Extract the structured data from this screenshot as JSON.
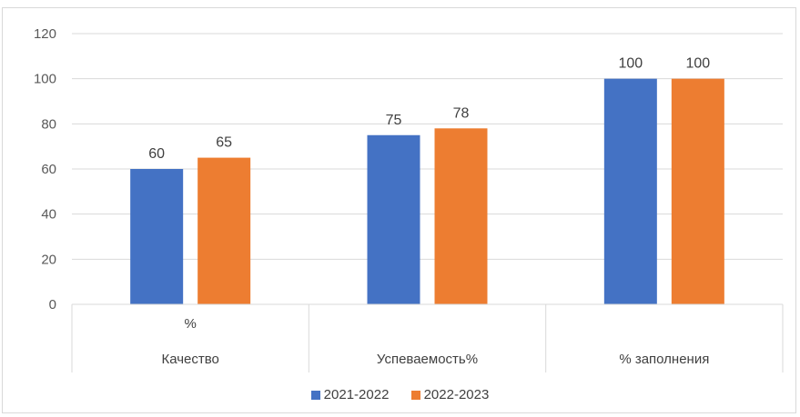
{
  "chart_data": {
    "type": "bar",
    "categories": [
      "Качество",
      "Успеваемость%",
      "% заполнения"
    ],
    "category_sublabels": [
      "%",
      "",
      ""
    ],
    "series": [
      {
        "name": "2021-2022",
        "values": [
          60,
          75,
          100
        ],
        "color": "#4472c4"
      },
      {
        "name": "2022-2023",
        "values": [
          65,
          78,
          100
        ],
        "color": "#ed7d31"
      }
    ],
    "ylim": [
      0,
      120
    ],
    "yticks": [
      0,
      20,
      40,
      60,
      80,
      100,
      120
    ],
    "grid": true,
    "legend_position": "bottom"
  }
}
